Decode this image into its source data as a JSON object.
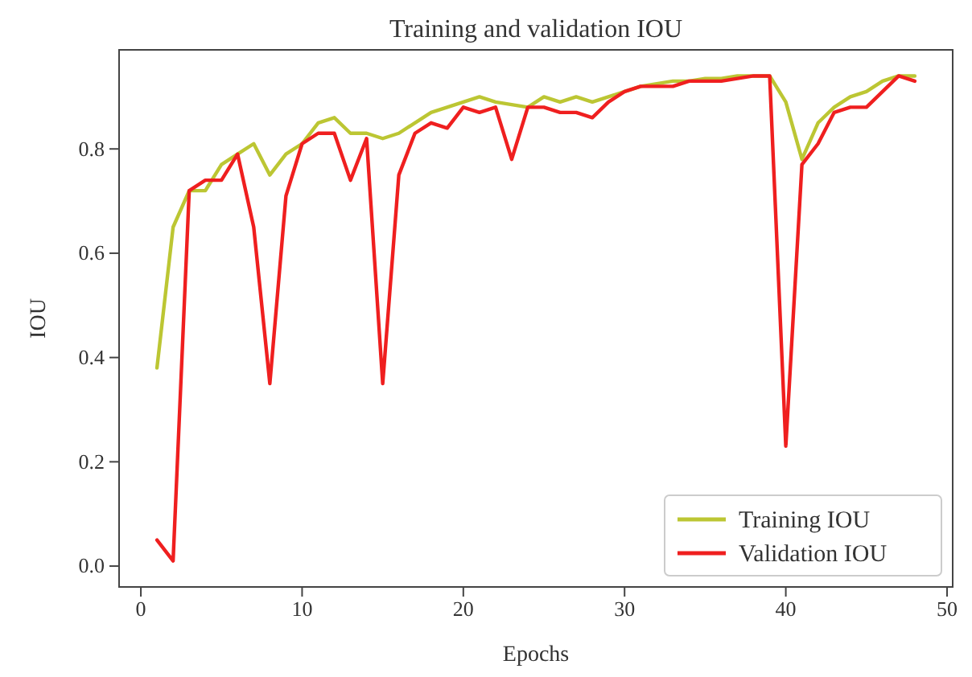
{
  "chart_data": {
    "type": "line",
    "title": "Training and validation IOU",
    "xlabel": "Epochs",
    "ylabel": "IOU",
    "x": [
      1,
      2,
      3,
      4,
      5,
      6,
      7,
      8,
      9,
      10,
      11,
      12,
      13,
      14,
      15,
      16,
      17,
      18,
      19,
      20,
      21,
      22,
      23,
      24,
      25,
      26,
      27,
      28,
      29,
      30,
      31,
      32,
      33,
      34,
      35,
      36,
      37,
      38,
      39,
      40,
      41,
      42,
      43,
      44,
      45,
      46,
      47,
      48
    ],
    "series": [
      {
        "name": "Training IOU",
        "color": "#bcc633",
        "values": [
          0.38,
          0.65,
          0.72,
          0.72,
          0.77,
          0.79,
          0.81,
          0.75,
          0.79,
          0.81,
          0.85,
          0.86,
          0.83,
          0.83,
          0.82,
          0.83,
          0.85,
          0.87,
          0.88,
          0.89,
          0.9,
          0.89,
          0.885,
          0.88,
          0.9,
          0.89,
          0.9,
          0.89,
          0.9,
          0.91,
          0.92,
          0.925,
          0.93,
          0.93,
          0.935,
          0.935,
          0.94,
          0.94,
          0.94,
          0.89,
          0.78,
          0.85,
          0.88,
          0.9,
          0.91,
          0.93,
          0.94,
          0.94
        ]
      },
      {
        "name": "Validation IOU",
        "color": "#ef1f1f",
        "values": [
          0.05,
          0.01,
          0.72,
          0.74,
          0.74,
          0.79,
          0.65,
          0.35,
          0.71,
          0.81,
          0.83,
          0.83,
          0.74,
          0.82,
          0.35,
          0.75,
          0.83,
          0.85,
          0.84,
          0.88,
          0.87,
          0.88,
          0.78,
          0.88,
          0.88,
          0.87,
          0.87,
          0.86,
          0.89,
          0.91,
          0.92,
          0.92,
          0.92,
          0.93,
          0.93,
          0.93,
          0.935,
          0.94,
          0.94,
          0.23,
          0.77,
          0.81,
          0.87,
          0.88,
          0.88,
          0.91,
          0.94,
          0.93
        ]
      }
    ],
    "xlim": [
      -1.35,
      50.35
    ],
    "xticks": [
      0,
      10,
      20,
      30,
      40,
      50
    ],
    "ylim": [
      -0.04,
      0.99
    ],
    "yticks": [
      {
        "value": 0,
        "label": "0.0"
      },
      {
        "value": 0.2,
        "label": "0.2"
      },
      {
        "value": 0.4,
        "label": "0.4"
      },
      {
        "value": 0.6,
        "label": "0.6"
      },
      {
        "value": 0.8,
        "label": "0.8"
      }
    ],
    "legend": "bottom right",
    "grid": false
  }
}
